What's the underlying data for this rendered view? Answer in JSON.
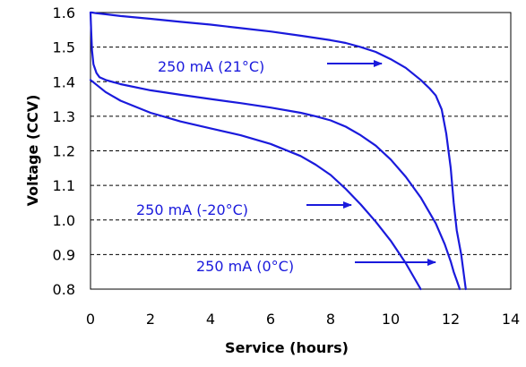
{
  "chart_data": {
    "type": "line",
    "title": "",
    "xlabel": "Service (hours)",
    "ylabel": "Voltage (CCV)",
    "xlim": [
      0,
      14
    ],
    "ylim": [
      0.8,
      1.6
    ],
    "x_ticks": [
      "0",
      "2",
      "4",
      "6",
      "8",
      "10",
      "12",
      "14"
    ],
    "y_ticks": [
      "0.8",
      "0.9",
      "1.0",
      "1.1",
      "1.2",
      "1.3",
      "1.4",
      "1.5",
      "1.6"
    ],
    "grid": "horizontal-dashed",
    "line_color": "#1a1adc",
    "series": [
      {
        "name": "250 mA (21°C)",
        "x": [
          0,
          0.05,
          0.2,
          0.5,
          1,
          2,
          3,
          4,
          5,
          6,
          7,
          8,
          8.5,
          9,
          9.5,
          10,
          10.5,
          11,
          11.3,
          11.5,
          11.7,
          11.85,
          12.0,
          12.1,
          12.2,
          12.35,
          12.5
        ],
        "y": [
          1.6,
          1.6,
          1.598,
          1.595,
          1.59,
          1.582,
          1.573,
          1.565,
          1.555,
          1.545,
          1.533,
          1.52,
          1.512,
          1.5,
          1.486,
          1.465,
          1.44,
          1.405,
          1.38,
          1.36,
          1.32,
          1.25,
          1.15,
          1.05,
          0.97,
          0.9,
          0.8
        ]
      },
      {
        "name": "250 mA (0°C)",
        "x": [
          0,
          0.02,
          0.05,
          0.1,
          0.2,
          0.3,
          0.5,
          1,
          2,
          3,
          4,
          5,
          6,
          7,
          7.5,
          8,
          8.5,
          9,
          9.5,
          10,
          10.5,
          11,
          11.5,
          11.8,
          12.0,
          12.1,
          12.2,
          12.3
        ],
        "y": [
          1.6,
          1.55,
          1.49,
          1.45,
          1.425,
          1.413,
          1.405,
          1.393,
          1.375,
          1.362,
          1.35,
          1.338,
          1.325,
          1.31,
          1.3,
          1.288,
          1.27,
          1.245,
          1.215,
          1.175,
          1.125,
          1.065,
          0.99,
          0.93,
          0.88,
          0.85,
          0.825,
          0.8
        ]
      },
      {
        "name": "250 mA (-20°C)",
        "x": [
          0,
          0.5,
          1,
          2,
          3,
          4,
          5,
          6,
          7,
          7.5,
          8,
          8.5,
          9,
          9.5,
          10,
          10.5,
          11
        ],
        "y": [
          1.405,
          1.37,
          1.345,
          1.31,
          1.285,
          1.265,
          1.245,
          1.22,
          1.185,
          1.16,
          1.13,
          1.09,
          1.045,
          0.995,
          0.94,
          0.875,
          0.8
        ]
      }
    ],
    "annotations": [
      {
        "text": "250 mA (21°C)",
        "series": "250 mA (21°C)"
      },
      {
        "text": "250 mA (-20°C)",
        "series": "250 mA (-20°C)"
      },
      {
        "text": "250 mA (0°C)",
        "series": "250 mA (0°C)"
      }
    ]
  }
}
